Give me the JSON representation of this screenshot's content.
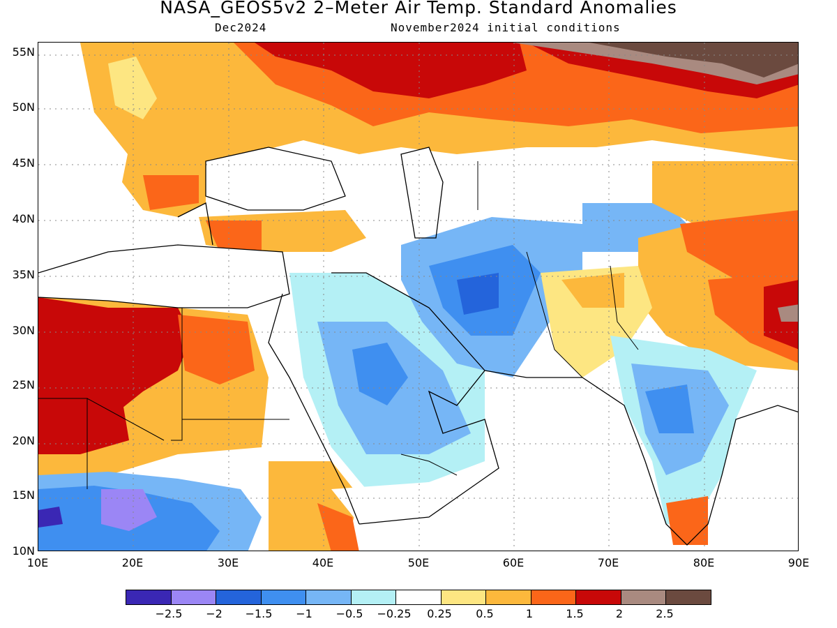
{
  "title": "NASA_GEOS5v2 2–Meter Air Temp. Standard Anomalies",
  "subtitle_left": "Dec2024",
  "subtitle_right": "November2024 initial conditions",
  "lat_labels": [
    "55N",
    "50N",
    "45N",
    "40N",
    "35N",
    "30N",
    "25N",
    "20N",
    "15N",
    "10N"
  ],
  "lon_labels": [
    "10E",
    "20E",
    "30E",
    "40E",
    "50E",
    "60E",
    "70E",
    "80E",
    "90E"
  ],
  "colorbar": {
    "colors": [
      "#3a27b4",
      "#9b86f5",
      "#2464db",
      "#3f8ff0",
      "#76b6f6",
      "#b4f0f5",
      "#ffffff",
      "#fde682",
      "#fcb83c",
      "#fb6619",
      "#c80808",
      "#a98a80",
      "#6b4a3f"
    ],
    "labels": [
      "−2.5",
      "−2",
      "−1.5",
      "−1",
      "−0.5",
      "−0.25",
      "0.25",
      "0.5",
      "1",
      "1.5",
      "2",
      "2.5"
    ]
  },
  "colors": {
    "dark_red": "#c80808",
    "red_orange": "#fb6619",
    "orange": "#fcb83c",
    "yellow": "#fde682",
    "light_cyan": "#b4f0f5",
    "light_blue": "#76b6f6",
    "blue": "#3f8ff0",
    "dark_blue": "#2464db",
    "purple": "#9b86f5",
    "indigo": "#3a27b4",
    "brown_light": "#a98a80",
    "brown_dark": "#6b4a3f"
  }
}
